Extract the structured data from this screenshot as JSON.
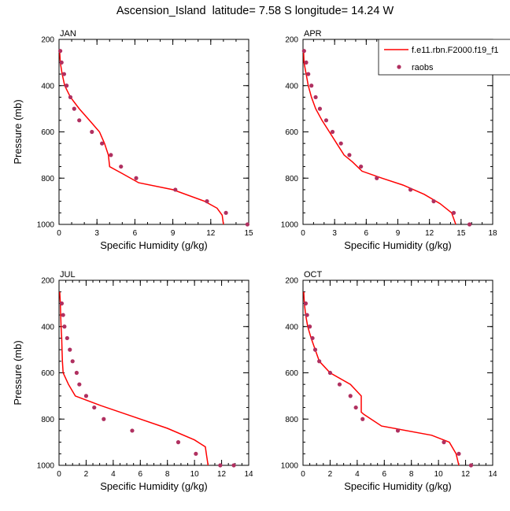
{
  "title": "Ascension_Island  latitude= 7.58 S longitude= 14.24 W",
  "legend": {
    "model_label": "f.e11.rbn.F2000.f19_f1",
    "obs_label": "raobs",
    "model_color": "#ff0000",
    "obs_color": "#b03060"
  },
  "chart_data": [
    {
      "type": "line",
      "label": "JAN",
      "xlabel": "Specific Humidity (g/kg)",
      "ylabel": "Pressure (mb)",
      "xlim": [
        0,
        15
      ],
      "xticks": [
        0,
        3,
        6,
        9,
        12,
        15
      ],
      "ylim": [
        200,
        1000
      ],
      "yticks": [
        200,
        400,
        600,
        800,
        1000
      ],
      "y_inverted": true,
      "series": [
        {
          "name": "f.e11.rbn.F2000.f19_f1",
          "kind": "line",
          "x": [
            0.05,
            0.1,
            0.25,
            0.45,
            0.9,
            1.6,
            2.4,
            3.2,
            3.6,
            3.9,
            4.0,
            5.0,
            6.3,
            9.0,
            11.5,
            12.5,
            12.9,
            13.0
          ],
          "y": [
            250,
            300,
            350,
            400,
            450,
            500,
            550,
            600,
            650,
            700,
            750,
            780,
            820,
            850,
            900,
            930,
            960,
            1000
          ]
        },
        {
          "name": "raobs",
          "kind": "scatter",
          "x": [
            0.1,
            0.2,
            0.4,
            0.6,
            0.9,
            1.2,
            1.6,
            2.6,
            3.4,
            4.1,
            4.9,
            6.1,
            9.2,
            11.7,
            13.2,
            14.9
          ],
          "y": [
            250,
            300,
            350,
            400,
            450,
            500,
            550,
            600,
            650,
            700,
            750,
            800,
            850,
            900,
            950,
            1000
          ]
        }
      ]
    },
    {
      "type": "line",
      "label": "APR",
      "xlabel": "Specific Humidity (g/kg)",
      "ylabel": "",
      "xlim": [
        0,
        18
      ],
      "xticks": [
        0,
        3,
        6,
        9,
        12,
        15,
        18
      ],
      "ylim": [
        200,
        1000
      ],
      "yticks": [
        200,
        400,
        600,
        800,
        1000
      ],
      "y_inverted": true,
      "series": [
        {
          "name": "f.e11.rbn.F2000.f19_f1",
          "kind": "line",
          "x": [
            0.05,
            0.1,
            0.3,
            0.5,
            0.8,
            1.2,
            1.8,
            2.5,
            3.2,
            3.9,
            4.7,
            5.6,
            7.5,
            9.5,
            11.5,
            13.0,
            14.1,
            14.5
          ],
          "y": [
            250,
            300,
            350,
            400,
            450,
            500,
            550,
            600,
            650,
            700,
            730,
            770,
            800,
            830,
            870,
            910,
            950,
            1000
          ]
        },
        {
          "name": "raobs",
          "kind": "scatter",
          "x": [
            0.1,
            0.3,
            0.5,
            0.8,
            1.2,
            1.6,
            2.2,
            2.8,
            3.6,
            4.4,
            5.5,
            7.0,
            10.2,
            12.4,
            14.3,
            15.8
          ],
          "y": [
            250,
            300,
            350,
            400,
            450,
            500,
            550,
            600,
            650,
            700,
            750,
            800,
            850,
            900,
            950,
            1000
          ]
        }
      ]
    },
    {
      "type": "line",
      "label": "JUL",
      "xlabel": "Specific Humidity (g/kg)",
      "ylabel": "Pressure (mb)",
      "xlim": [
        0,
        14
      ],
      "xticks": [
        0,
        2,
        4,
        6,
        8,
        10,
        12,
        14
      ],
      "ylim": [
        200,
        1000
      ],
      "yticks": [
        200,
        400,
        600,
        800,
        1000
      ],
      "y_inverted": true,
      "series": [
        {
          "name": "f.e11.rbn.F2000.f19_f1",
          "kind": "line",
          "x": [
            0.05,
            0.1,
            0.12,
            0.15,
            0.2,
            0.22,
            0.25,
            0.3,
            0.7,
            1.2,
            3.0,
            5.5,
            8.0,
            10.0,
            10.8,
            10.9,
            11.0
          ],
          "y": [
            250,
            300,
            350,
            400,
            450,
            500,
            550,
            600,
            650,
            700,
            740,
            790,
            840,
            890,
            920,
            960,
            1000
          ]
        },
        {
          "name": "raobs",
          "kind": "scatter",
          "x": [
            0.2,
            0.3,
            0.4,
            0.6,
            0.8,
            1.0,
            1.3,
            1.5,
            2.0,
            2.6,
            3.3,
            5.4,
            8.8,
            10.1,
            11.9,
            12.9
          ],
          "y": [
            300,
            350,
            400,
            450,
            500,
            550,
            600,
            650,
            700,
            750,
            800,
            850,
            900,
            950,
            1000,
            1000
          ]
        }
      ]
    },
    {
      "type": "line",
      "label": "OCT",
      "xlabel": "Specific Humidity (g/kg)",
      "ylabel": "",
      "xlim": [
        0,
        14
      ],
      "xticks": [
        0,
        2,
        4,
        6,
        8,
        10,
        12,
        14
      ],
      "ylim": [
        200,
        1000
      ],
      "yticks": [
        200,
        400,
        600,
        800,
        1000
      ],
      "y_inverted": true,
      "series": [
        {
          "name": "f.e11.rbn.F2000.f19_f1",
          "kind": "line",
          "x": [
            0.05,
            0.1,
            0.2,
            0.35,
            0.6,
            0.9,
            1.2,
            2.0,
            3.5,
            4.3,
            4.3,
            4.5,
            5.8,
            9.5,
            10.8,
            11.3,
            11.5
          ],
          "y": [
            250,
            300,
            350,
            400,
            450,
            500,
            550,
            600,
            650,
            700,
            770,
            780,
            830,
            870,
            900,
            950,
            1000
          ]
        },
        {
          "name": "raobs",
          "kind": "scatter",
          "x": [
            0.2,
            0.3,
            0.5,
            0.7,
            0.9,
            1.2,
            2.0,
            2.7,
            3.5,
            3.9,
            4.4,
            7.0,
            10.4,
            11.5,
            12.4
          ],
          "y": [
            300,
            350,
            400,
            450,
            500,
            550,
            600,
            650,
            700,
            750,
            800,
            850,
            900,
            950,
            1000
          ]
        }
      ]
    }
  ]
}
